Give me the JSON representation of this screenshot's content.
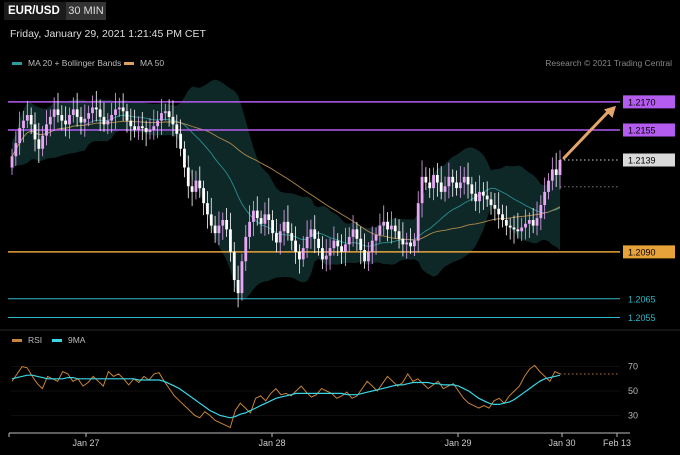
{
  "header": {
    "symbol": "EUR/USD",
    "interval": "30 MIN",
    "datetime": "Friday, January 29, 2021 1:21:45 PM CET",
    "credit": "Research © 2021 Trading Central"
  },
  "legend": {
    "main": [
      {
        "label": "MA 20 + Bollinger Bands",
        "color": "#2a9d9d"
      },
      {
        "label": "MA 50",
        "color": "#e0a060"
      }
    ],
    "rsi": [
      {
        "label": "RSI",
        "color": "#c8843a"
      },
      {
        "label": "9MA",
        "color": "#39d7e6"
      }
    ]
  },
  "colors": {
    "up": "#e9a6f6",
    "down": "#ffffff",
    "resistance": "#b45cf0",
    "support_orange": "#e7a33a",
    "support_teal": "#2fb7c7",
    "bb_fill": "#0f2a2a",
    "ma20": "#2a8e8e",
    "ma50": "#b08a4a",
    "arrow": "#e4a56b"
  },
  "chart_data": [
    {
      "type": "candlestick",
      "x_ticks": [
        "Jan 27",
        "Jan 28",
        "Jan 29",
        "Jan 30",
        "Feb 13"
      ],
      "price_levels": [
        {
          "value": 1.217,
          "label": "1.2170",
          "kind": "resistance"
        },
        {
          "value": 1.2155,
          "label": "1.2155",
          "kind": "resistance"
        },
        {
          "value": 1.2139,
          "label": "1.2139",
          "kind": "last"
        },
        {
          "value": 1.209,
          "label": "1.2090",
          "kind": "support"
        },
        {
          "value": 1.2065,
          "label": "1.2065",
          "kind": "target"
        },
        {
          "value": 1.2055,
          "label": "1.2055",
          "kind": "target"
        }
      ],
      "ylim": [
        1.2051,
        1.2179
      ],
      "close": [
        1.2141,
        1.2148,
        1.2156,
        1.216,
        1.2163,
        1.2158,
        1.215,
        1.2145,
        1.2152,
        1.2158,
        1.2162,
        1.2166,
        1.2163,
        1.216,
        1.2158,
        1.2163,
        1.2166,
        1.2162,
        1.2159,
        1.2161,
        1.2164,
        1.2167,
        1.2166,
        1.2162,
        1.2158,
        1.216,
        1.2163,
        1.2166,
        1.2167,
        1.2165,
        1.216,
        1.2157,
        1.2155,
        1.2157,
        1.2156,
        1.2154,
        1.2155,
        1.2157,
        1.216,
        1.2164,
        1.2165,
        1.2162,
        1.2158,
        1.2153,
        1.2145,
        1.2135,
        1.2125,
        1.2122,
        1.2128,
        1.2124,
        1.2116,
        1.211,
        1.2104,
        1.21,
        1.2104,
        1.2107,
        1.2102,
        1.209,
        1.2075,
        1.2068,
        1.2085,
        1.2098,
        1.2106,
        1.2112,
        1.2108,
        1.2105,
        1.211,
        1.2107,
        1.21,
        1.2095,
        1.2101,
        1.2106,
        1.21,
        1.2096,
        1.209,
        1.2086,
        1.2092,
        1.2098,
        1.2102,
        1.2097,
        1.2092,
        1.2086,
        1.2088,
        1.2092,
        1.2096,
        1.2093,
        1.209,
        1.2094,
        1.2098,
        1.2102,
        1.2097,
        1.2091,
        1.2085,
        1.209,
        1.2096,
        1.2099,
        1.2104,
        1.2106,
        1.2102,
        1.2104,
        1.2101,
        1.2097,
        1.2094,
        1.2095,
        1.2093,
        1.2096,
        1.2116,
        1.213,
        1.2127,
        1.2124,
        1.2131,
        1.2127,
        1.2122,
        1.2125,
        1.213,
        1.2127,
        1.2124,
        1.2127,
        1.213,
        1.2126,
        1.2121,
        1.2117,
        1.2122,
        1.212,
        1.2118,
        1.2115,
        1.2113,
        1.211,
        1.2107,
        1.2104,
        1.2103,
        1.2102,
        1.2101,
        1.2103,
        1.2105,
        1.2107,
        1.2104,
        1.2108,
        1.2115,
        1.2122,
        1.2128,
        1.2134,
        1.2131,
        1.2139
      ],
      "rsi": {
        "y_ticks": [
          70,
          50,
          30
        ],
        "ylim": [
          18,
          82
        ],
        "rsi": [
          58,
          64,
          70,
          69,
          62,
          56,
          52,
          62,
          60,
          58,
          66,
          64,
          58,
          60,
          54,
          57,
          62,
          58,
          54,
          66,
          62,
          64,
          60,
          55,
          60,
          57,
          62,
          59,
          64,
          65,
          58,
          52,
          46,
          42,
          38,
          34,
          30,
          28,
          33,
          30,
          26,
          24,
          22,
          20,
          34,
          40,
          36,
          32,
          44,
          46,
          42,
          48,
          52,
          47,
          48,
          46,
          50,
          54,
          49,
          45,
          47,
          52,
          50,
          48,
          44,
          46,
          49,
          44,
          46,
          52,
          58,
          54,
          50,
          56,
          62,
          58,
          54,
          57,
          64,
          58,
          60,
          56,
          52,
          55,
          58,
          52,
          54,
          56,
          50,
          44,
          40,
          38,
          36,
          38,
          36,
          42,
          44,
          40,
          46,
          50,
          54,
          62,
          68,
          71,
          66,
          62,
          58,
          66,
          64
        ],
        "ma9": [
          60,
          61,
          62,
          63,
          63,
          62,
          61,
          60,
          60,
          60,
          60,
          61,
          61,
          60,
          60,
          60,
          60,
          60,
          60,
          60,
          60,
          60,
          60,
          60,
          60,
          59,
          59,
          59,
          59,
          59,
          58,
          56,
          54,
          52,
          49,
          46,
          43,
          40,
          37,
          34,
          32,
          30,
          29,
          28,
          29,
          31,
          32,
          34,
          36,
          38,
          40,
          42,
          44,
          45,
          46,
          47,
          48,
          48,
          48,
          48,
          48,
          48,
          48,
          48,
          48,
          48,
          47,
          47,
          47,
          48,
          49,
          50,
          51,
          52,
          53,
          54,
          55,
          55,
          56,
          57,
          57,
          57,
          57,
          56,
          56,
          55,
          55,
          55,
          54,
          52,
          50,
          47,
          44,
          42,
          40,
          39,
          39,
          40,
          41,
          43,
          46,
          49,
          52,
          55,
          58,
          60,
          61,
          62,
          63
        ]
      }
    }
  ]
}
